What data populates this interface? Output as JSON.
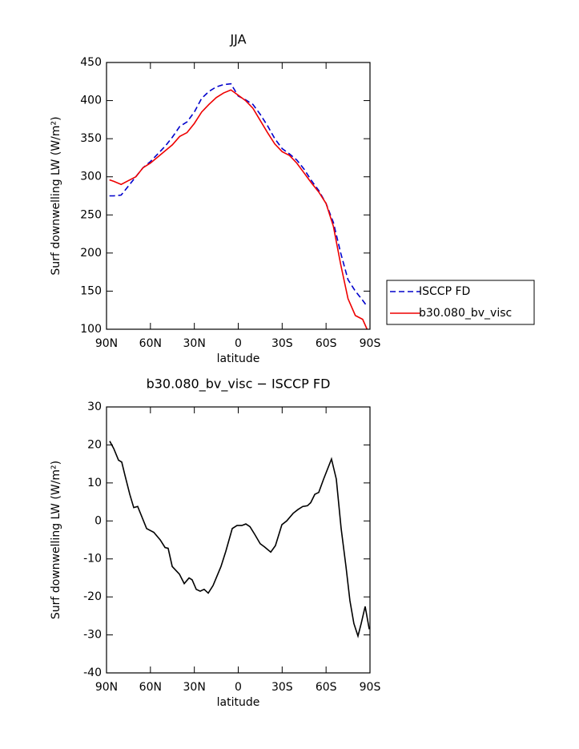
{
  "chart_data": [
    {
      "type": "line",
      "title": "JJA",
      "xlabel": "latitude",
      "ylabel": "Surf downwelling LW (W/m²)",
      "x": [
        88,
        85,
        80,
        75,
        70,
        65,
        60,
        55,
        50,
        45,
        40,
        35,
        30,
        25,
        20,
        15,
        10,
        5,
        0,
        -5,
        -10,
        -15,
        -20,
        -25,
        -30,
        -35,
        -40,
        -45,
        -50,
        -55,
        -60,
        -65,
        -70,
        -75,
        -80,
        -85,
        -88
      ],
      "series": [
        {
          "name": "ISCCP FD",
          "color": "#0000cc",
          "style": "dashed",
          "values": [
            275,
            275,
            276,
            288,
            300,
            312,
            320,
            330,
            340,
            352,
            366,
            372,
            385,
            403,
            412,
            418,
            421,
            422,
            406,
            401,
            395,
            382,
            367,
            350,
            337,
            330,
            322,
            310,
            295,
            282,
            265,
            240,
            200,
            165,
            150,
            138,
            130
          ]
        },
        {
          "name": "b30.080_bv_visc",
          "color": "#ee0000",
          "style": "solid",
          "values": [
            296,
            294,
            290,
            295,
            300,
            312,
            318,
            326,
            334,
            342,
            353,
            358,
            370,
            385,
            395,
            404,
            410,
            414,
            407,
            400,
            390,
            374,
            358,
            343,
            333,
            328,
            318,
            305,
            292,
            280,
            265,
            235,
            185,
            140,
            118,
            113,
            100
          ]
        }
      ],
      "xlim": [
        90,
        -90
      ],
      "xticks": [
        {
          "value": 90,
          "label": "90N"
        },
        {
          "value": 60,
          "label": "60N"
        },
        {
          "value": 30,
          "label": "30N"
        },
        0,
        {
          "value": -30,
          "label": "30S"
        },
        {
          "value": -60,
          "label": "60S"
        },
        {
          "value": -90,
          "label": "90S"
        }
      ],
      "ylim": [
        100,
        450
      ],
      "yticks": [
        100,
        150,
        200,
        250,
        300,
        350,
        400,
        450
      ],
      "legend": "right"
    },
    {
      "type": "line",
      "title": "b30.080_bv_visc − ISCCP FD",
      "xlabel": "latitude",
      "ylabel": "Surf downwelling LW (W/m²)",
      "x": [
        87.8,
        85,
        81.8,
        79.6,
        77.4,
        74.1,
        71.4,
        68.7,
        62.6,
        57.7,
        53.3,
        50,
        47.9,
        45.1,
        40.2,
        36.9,
        33.6,
        31.5,
        28.7,
        26,
        23.3,
        20.5,
        17.2,
        11.8,
        8.5,
        4.1,
        0.8,
        -2.5,
        -5.2,
        -8,
        -11.2,
        -15,
        -17.8,
        -22.2,
        -25.4,
        -29.8,
        -33.1,
        -37.5,
        -40.8,
        -44.1,
        -47.3,
        -49.5,
        -52.3,
        -55,
        -58.3,
        -63.7,
        -67,
        -70.3,
        -73.6,
        -76.3,
        -79,
        -81.8,
        -84,
        -86.7,
        -89.5
      ],
      "values": [
        21,
        19,
        16,
        15.5,
        12,
        7,
        3.5,
        3.8,
        -2,
        -3,
        -5,
        -7,
        -7.2,
        -12,
        -14,
        -16.5,
        -15,
        -15.5,
        -18,
        -18.5,
        -18,
        -19,
        -17,
        -12,
        -8,
        -2,
        -1.2,
        -1.2,
        -0.8,
        -1.5,
        -3.5,
        -6,
        -6.8,
        -8.2,
        -6.5,
        -1,
        0,
        2,
        3,
        3.8,
        4,
        4.8,
        7,
        7.5,
        11,
        16.3,
        11,
        -2,
        -12,
        -21,
        -27,
        -30.3,
        -27,
        -22.5,
        -28.5
      ],
      "color": "#000000",
      "xlim": [
        90,
        -90
      ],
      "xticks": [
        {
          "value": 90,
          "label": "90N"
        },
        {
          "value": 60,
          "label": "60N"
        },
        {
          "value": 30,
          "label": "30N"
        },
        0,
        {
          "value": -30,
          "label": "30S"
        },
        {
          "value": -60,
          "label": "60S"
        },
        {
          "value": -90,
          "label": "90S"
        }
      ],
      "ylim": [
        -40,
        30
      ],
      "yticks": [
        -40,
        -30,
        -20,
        -10,
        0,
        10,
        20,
        30
      ]
    }
  ]
}
